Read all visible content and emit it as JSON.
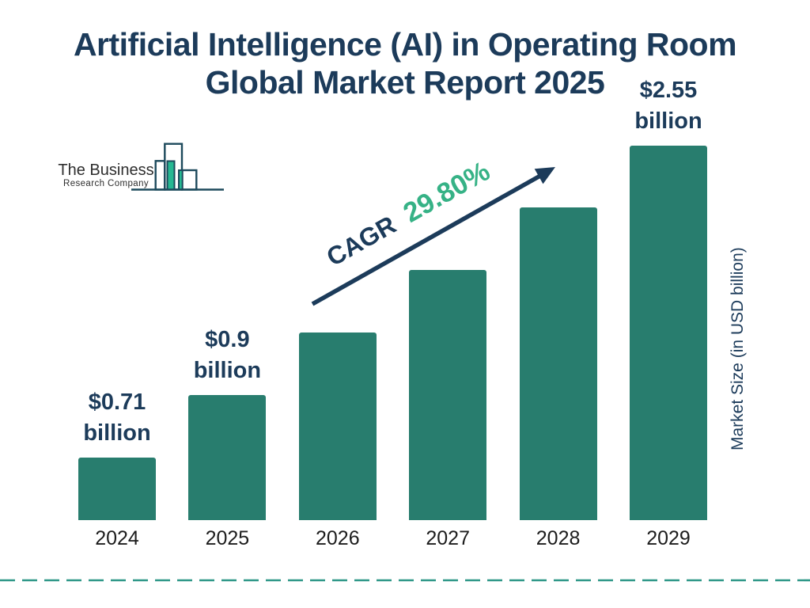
{
  "title": {
    "line1": "Artificial Intelligence (AI) in Operating Room",
    "line2": "Global Market Report 2025"
  },
  "logo": {
    "line1": "The Business",
    "line2": "Research Company"
  },
  "cagr": {
    "label": "CAGR",
    "value": "29.80%"
  },
  "ylabel": "Market Size (in USD billion)",
  "chart_data": {
    "type": "bar",
    "title": "Artificial Intelligence (AI) in Operating Room Global Market Report 2025",
    "categories": [
      "2024",
      "2025",
      "2026",
      "2027",
      "2028",
      "2029"
    ],
    "values": [
      0.71,
      0.9,
      1.17,
      1.52,
      1.97,
      2.55
    ],
    "unit": "USD billion",
    "data_labels": [
      "$0.71 billion",
      "$0.9 billion",
      "",
      "",
      "",
      "$2.55 billion"
    ],
    "cagr": "29.80%",
    "ylabel": "Market Size (in USD billion)",
    "grid": false,
    "legend": false
  },
  "colors": {
    "navy": "#1c3b5a",
    "bar": "#287d6e",
    "green": "#36b286",
    "dash": "#2d9787",
    "logo_teal": "#26b892",
    "logo_outline": "#1d4a5c",
    "year_text": "#1c1c1c"
  }
}
